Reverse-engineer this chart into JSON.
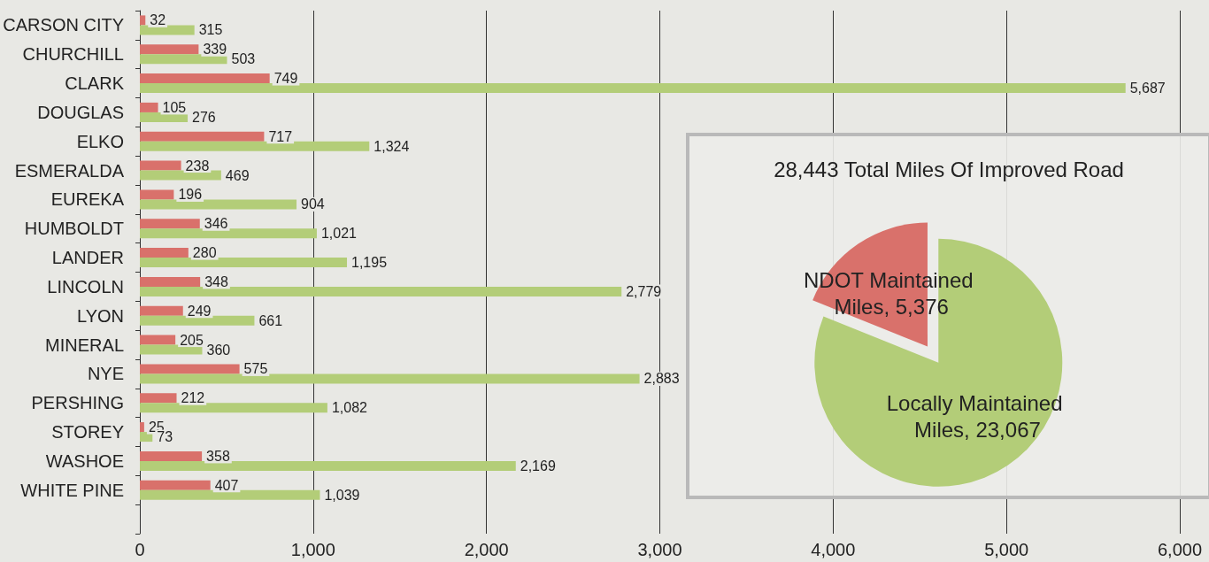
{
  "chart_data": [
    {
      "type": "bar",
      "orientation": "horizontal",
      "categories": [
        "CARSON CITY",
        "CHURCHILL",
        "CLARK",
        "DOUGLAS",
        "ELKO",
        "ESMERALDA",
        "EUREKA",
        "HUMBOLDT",
        "LANDER",
        "LINCOLN",
        "LYON",
        "MINERAL",
        "NYE",
        "PERSHING",
        "STOREY",
        "WASHOE",
        "WHITE PINE",
        null
      ],
      "series": [
        {
          "color": "#d9716b",
          "values": [
            32,
            339,
            749,
            105,
            717,
            238,
            196,
            346,
            280,
            348,
            249,
            205,
            575,
            212,
            25,
            358,
            407,
            null
          ],
          "value_labels": [
            "32",
            "339",
            "749",
            "105",
            "717",
            "238",
            "196",
            "346",
            "280",
            "348",
            "249",
            "205",
            "575",
            "212",
            "25",
            "358",
            "407",
            null
          ]
        },
        {
          "color": "#b3cd78",
          "values": [
            315,
            503,
            5687,
            276,
            1324,
            469,
            904,
            1021,
            1195,
            2779,
            661,
            360,
            2883,
            1082,
            73,
            2169,
            1039,
            null
          ],
          "value_labels": [
            "315",
            "503",
            "5,687",
            "276",
            "1,324",
            "469",
            "904",
            "1,021",
            "1,195",
            "2,779",
            "661",
            "360",
            "2,883",
            "1,082",
            "73",
            "2,169",
            "1,039",
            null
          ]
        }
      ],
      "xlim": [
        0,
        6000
      ],
      "xticks": [
        0,
        {
          "value": 1000,
          "label": "1,000"
        },
        {
          "value": 2000,
          "label": "2,000"
        },
        {
          "value": 3000,
          "label": "3,000"
        },
        {
          "value": 4000,
          "label": "4,000"
        },
        {
          "value": 5000,
          "label": "5,000"
        },
        {
          "value": 6000,
          "label": "6,000"
        }
      ],
      "grid": "x"
    },
    {
      "type": "pie",
      "title": "28,443 Total Miles Of Improved Road",
      "categories": [
        "NDOT Maintained Miles",
        "Locally Maintained Miles"
      ],
      "values": [
        5376,
        23067
      ],
      "value_labels": [
        "5,376",
        "23,067"
      ],
      "colors": [
        "#d9716b",
        "#b3cd78"
      ]
    }
  ]
}
